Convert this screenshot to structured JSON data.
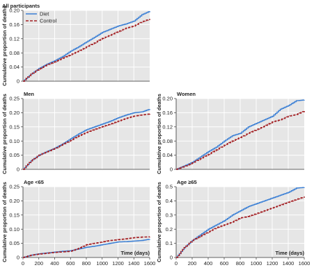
{
  "figure": {
    "ylabel": "Cumulative proportion of deaths",
    "xlabel": "Time (days)",
    "legend": [
      "Diet",
      "Control"
    ],
    "colors": {
      "Diet": "#3a7fd5",
      "Control": "#a31e22",
      "panel_bg": "#e6e6e6"
    }
  },
  "chart_data": [
    {
      "type": "line",
      "title": "All participants",
      "xlim": [
        0,
        1600
      ],
      "ylim": [
        0,
        0.2
      ],
      "xticks": [],
      "yticks": [
        "0",
        "0.04",
        "0.08",
        "0.12",
        "0.16",
        "0.20"
      ],
      "legend_position": "top-left",
      "series": [
        {
          "name": "Diet",
          "style": "solid",
          "x": [
            0,
            100,
            200,
            300,
            400,
            500,
            600,
            700,
            800,
            900,
            1000,
            1100,
            1200,
            1300,
            1400,
            1500,
            1600
          ],
          "y": [
            0,
            0.02,
            0.036,
            0.048,
            0.058,
            0.07,
            0.085,
            0.097,
            0.111,
            0.124,
            0.138,
            0.147,
            0.156,
            0.162,
            0.17,
            0.188,
            0.198
          ]
        },
        {
          "name": "Control",
          "style": "dashed",
          "x": [
            0,
            100,
            200,
            300,
            400,
            500,
            600,
            700,
            800,
            900,
            1000,
            1100,
            1200,
            1300,
            1400,
            1500,
            1600
          ],
          "y": [
            0,
            0.02,
            0.034,
            0.046,
            0.055,
            0.065,
            0.075,
            0.085,
            0.097,
            0.108,
            0.121,
            0.13,
            0.14,
            0.15,
            0.156,
            0.168,
            0.176
          ]
        }
      ]
    },
    {
      "type": "line",
      "title": "Men",
      "xlim": [
        0,
        1600
      ],
      "ylim": [
        0,
        0.25
      ],
      "xticks": [],
      "yticks": [
        "0",
        "0.05",
        "0.10",
        "0.15",
        "0.20",
        "0.25"
      ],
      "series": [
        {
          "name": "Diet",
          "style": "solid",
          "x": [
            0,
            100,
            200,
            300,
            400,
            500,
            600,
            700,
            800,
            900,
            1000,
            1100,
            1200,
            1300,
            1400,
            1500,
            1600
          ],
          "y": [
            0,
            0.03,
            0.05,
            0.063,
            0.075,
            0.09,
            0.108,
            0.125,
            0.14,
            0.15,
            0.16,
            0.17,
            0.182,
            0.192,
            0.2,
            0.203,
            0.213
          ]
        },
        {
          "name": "Control",
          "style": "dashed",
          "x": [
            0,
            100,
            200,
            300,
            400,
            500,
            600,
            700,
            800,
            900,
            1000,
            1100,
            1200,
            1300,
            1400,
            1500,
            1600
          ],
          "y": [
            0,
            0.03,
            0.05,
            0.062,
            0.073,
            0.088,
            0.102,
            0.118,
            0.13,
            0.141,
            0.151,
            0.16,
            0.17,
            0.18,
            0.188,
            0.192,
            0.196
          ]
        }
      ]
    },
    {
      "type": "line",
      "title": "Women",
      "xlim": [
        0,
        1600
      ],
      "ylim": [
        0,
        0.2
      ],
      "xticks": [],
      "yticks": [
        "0",
        "0.04",
        "0.08",
        "0.12",
        "0.16",
        "0.20"
      ],
      "series": [
        {
          "name": "Diet",
          "style": "solid",
          "x": [
            0,
            100,
            200,
            300,
            400,
            500,
            600,
            700,
            800,
            900,
            1000,
            1100,
            1200,
            1300,
            1400,
            1500,
            1600
          ],
          "y": [
            0,
            0.01,
            0.02,
            0.035,
            0.05,
            0.063,
            0.08,
            0.095,
            0.102,
            0.12,
            0.13,
            0.14,
            0.15,
            0.17,
            0.18,
            0.194,
            0.196
          ]
        },
        {
          "name": "Control",
          "style": "dashed",
          "x": [
            0,
            100,
            200,
            300,
            400,
            500,
            600,
            700,
            800,
            900,
            1000,
            1100,
            1200,
            1300,
            1400,
            1500,
            1600
          ],
          "y": [
            0,
            0.008,
            0.018,
            0.03,
            0.042,
            0.055,
            0.068,
            0.08,
            0.09,
            0.102,
            0.112,
            0.122,
            0.134,
            0.14,
            0.15,
            0.155,
            0.165
          ]
        }
      ]
    },
    {
      "type": "line",
      "title": "Age <65",
      "xlim": [
        0,
        1600
      ],
      "ylim": [
        0,
        0.25
      ],
      "xticks": [
        "0",
        "200",
        "400",
        "600",
        "800",
        "1000",
        "1200",
        "1400",
        "1600"
      ],
      "yticks": [
        "0",
        "0.05",
        "0.10",
        "0.15",
        "0.20",
        "0.25"
      ],
      "series": [
        {
          "name": "Diet",
          "style": "solid",
          "x": [
            0,
            100,
            200,
            300,
            400,
            500,
            600,
            700,
            800,
            900,
            1000,
            1100,
            1200,
            1300,
            1400,
            1500,
            1600
          ],
          "y": [
            0,
            0.008,
            0.013,
            0.016,
            0.019,
            0.022,
            0.024,
            0.03,
            0.036,
            0.04,
            0.045,
            0.05,
            0.055,
            0.056,
            0.058,
            0.06,
            0.065
          ]
        },
        {
          "name": "Control",
          "style": "dashed",
          "x": [
            0,
            100,
            200,
            300,
            400,
            500,
            600,
            700,
            800,
            900,
            1000,
            1100,
            1200,
            1300,
            1400,
            1500,
            1600
          ],
          "y": [
            0,
            0.008,
            0.012,
            0.015,
            0.018,
            0.02,
            0.022,
            0.032,
            0.045,
            0.05,
            0.055,
            0.06,
            0.063,
            0.066,
            0.07,
            0.072,
            0.073
          ]
        }
      ]
    },
    {
      "type": "line",
      "title": "Age ≥65",
      "xlim": [
        0,
        1600
      ],
      "ylim": [
        0,
        0.5
      ],
      "xticks": [
        "0",
        "200",
        "400",
        "600",
        "800",
        "1000",
        "1200",
        "1400",
        "1600"
      ],
      "yticks": [
        "0",
        "0.1",
        "0.2",
        "0.3",
        "0.4",
        "0.5"
      ],
      "series": [
        {
          "name": "Diet",
          "style": "solid",
          "x": [
            0,
            100,
            200,
            300,
            400,
            500,
            600,
            700,
            800,
            900,
            1000,
            1100,
            1200,
            1300,
            1400,
            1500,
            1600
          ],
          "y": [
            0,
            0.07,
            0.12,
            0.16,
            0.2,
            0.23,
            0.26,
            0.3,
            0.33,
            0.36,
            0.38,
            0.4,
            0.42,
            0.44,
            0.46,
            0.49,
            0.495
          ]
        },
        {
          "name": "Control",
          "style": "dashed",
          "x": [
            0,
            100,
            200,
            300,
            400,
            500,
            600,
            700,
            800,
            900,
            1000,
            1100,
            1200,
            1300,
            1400,
            1500,
            1600
          ],
          "y": [
            0,
            0.07,
            0.12,
            0.15,
            0.18,
            0.21,
            0.23,
            0.25,
            0.28,
            0.29,
            0.31,
            0.33,
            0.35,
            0.37,
            0.39,
            0.41,
            0.43
          ]
        }
      ]
    }
  ]
}
